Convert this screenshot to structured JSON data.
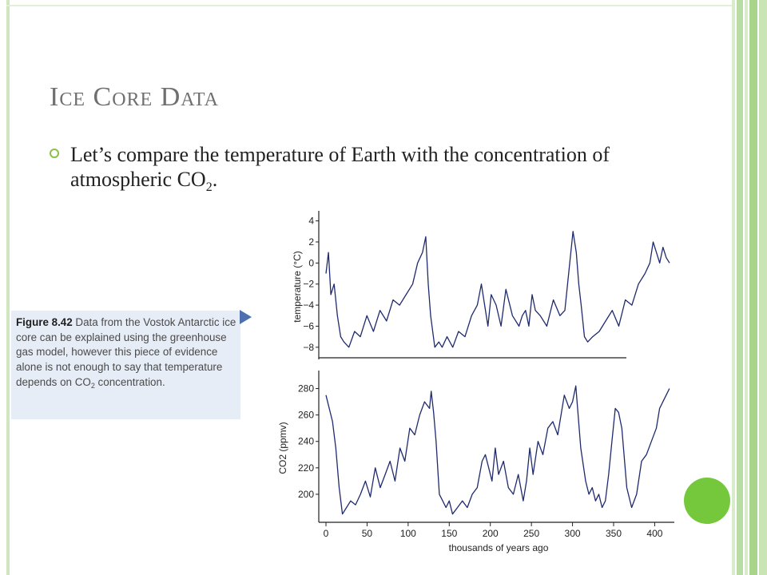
{
  "slide": {
    "title_first_1": "I",
    "title_rest_1": "ce ",
    "title_first_2": "C",
    "title_rest_2": "ore ",
    "title_first_3": "D",
    "title_rest_3": "ata",
    "bullet_text_before": "Let’s compare the temperature of Earth with the concentration of atmospheric CO",
    "bullet_sub": "2",
    "bullet_text_after": ".",
    "colors": {
      "accent_green": "#75c83b",
      "caption_bg": "#e7edf6",
      "arrow": "#4e6fb0",
      "line": "#1f2a6e"
    }
  },
  "caption": {
    "label": "Figure 8.42",
    "text_before": " Data from the Vostok Antarctic ice core can be explained using the greenhouse gas model, however this piece of evidence alone is not enough to say that temperature depends on CO",
    "sub": "2",
    "text_after": " concentration."
  },
  "chart_data": [
    {
      "type": "line",
      "ylabel": "temperature (°C)",
      "xlabel": "",
      "y_ticks": [
        "4",
        "2",
        "0",
        "−2",
        "−4",
        "−6",
        "−8"
      ],
      "ylim": [
        -9,
        4.5
      ],
      "xlim": [
        0,
        420
      ],
      "series": [
        {
          "x": [
            0,
            3,
            6,
            10,
            14,
            18,
            22,
            28,
            35,
            42,
            50,
            58,
            66,
            74,
            82,
            90,
            98,
            106,
            112,
            118,
            122,
            125,
            128,
            133,
            138,
            142,
            148,
            155,
            162,
            170,
            178,
            185,
            190,
            194,
            198,
            202,
            208,
            214,
            220,
            228,
            236,
            240,
            244,
            248,
            252,
            256,
            262,
            270,
            278,
            286,
            292,
            298,
            302,
            306,
            309,
            312,
            316,
            320,
            326,
            334,
            342,
            350,
            358,
            366,
            374,
            382,
            390,
            396,
            400,
            404,
            408,
            412,
            416,
            420
          ],
          "y": [
            -1,
            1,
            -3,
            -2,
            -5,
            -7,
            -7.5,
            -8,
            -6.5,
            -7,
            -5,
            -6.5,
            -4.5,
            -5.5,
            -3.5,
            -4,
            -3,
            -2,
            0,
            1,
            2.5,
            -2,
            -5,
            -8,
            -7.5,
            -8,
            -7,
            -8,
            -6.5,
            -7,
            -5,
            -4,
            -2,
            -4,
            -6,
            -3,
            -4,
            -6,
            -2.5,
            -5,
            -6,
            -5,
            -4.5,
            -6,
            -3,
            -4.5,
            -5,
            -6,
            -3.5,
            -5,
            -4.5,
            0,
            3,
            1,
            -2,
            -4,
            -7,
            -7.5,
            -7,
            -6.5,
            -5.5,
            -4.5,
            -6,
            -3.5,
            -4,
            -2,
            -1,
            0,
            2,
            1,
            0,
            1.5,
            0.5,
            0
          ]
        }
      ]
    },
    {
      "type": "line",
      "ylabel": "CO2 (ppmv)",
      "xlabel": "thousands of years ago",
      "y_ticks": [
        "280",
        "260",
        "240",
        "220",
        "200"
      ],
      "x_ticks": [
        "0",
        "50",
        "100",
        "150",
        "200",
        "250",
        "300",
        "350",
        "400"
      ],
      "ylim": [
        180,
        290
      ],
      "xlim": [
        0,
        420
      ],
      "series": [
        {
          "x": [
            0,
            4,
            8,
            12,
            16,
            20,
            25,
            30,
            36,
            42,
            48,
            54,
            60,
            66,
            72,
            78,
            84,
            90,
            96,
            102,
            108,
            114,
            120,
            126,
            128,
            131,
            134,
            138,
            142,
            146,
            150,
            154,
            160,
            166,
            172,
            178,
            184,
            190,
            194,
            198,
            202,
            206,
            210,
            216,
            222,
            228,
            234,
            240,
            244,
            248,
            252,
            258,
            264,
            270,
            276,
            282,
            286,
            290,
            296,
            300,
            304,
            310,
            316,
            320,
            324,
            328,
            332,
            336,
            340,
            344,
            348,
            352,
            356,
            360,
            366,
            372,
            378,
            384,
            390,
            396,
            402,
            406,
            410,
            414,
            418
          ],
          "y": [
            275,
            265,
            255,
            235,
            205,
            185,
            190,
            195,
            192,
            200,
            210,
            198,
            220,
            205,
            215,
            225,
            210,
            235,
            225,
            250,
            245,
            260,
            270,
            265,
            278,
            262,
            240,
            200,
            195,
            190,
            195,
            185,
            190,
            195,
            190,
            200,
            205,
            225,
            230,
            220,
            210,
            235,
            215,
            225,
            205,
            200,
            215,
            195,
            210,
            235,
            215,
            240,
            230,
            250,
            255,
            245,
            260,
            275,
            265,
            270,
            282,
            235,
            210,
            200,
            205,
            195,
            200,
            190,
            195,
            215,
            240,
            265,
            262,
            250,
            205,
            190,
            200,
            225,
            230,
            240,
            250,
            265,
            270,
            275,
            280
          ]
        }
      ]
    }
  ]
}
